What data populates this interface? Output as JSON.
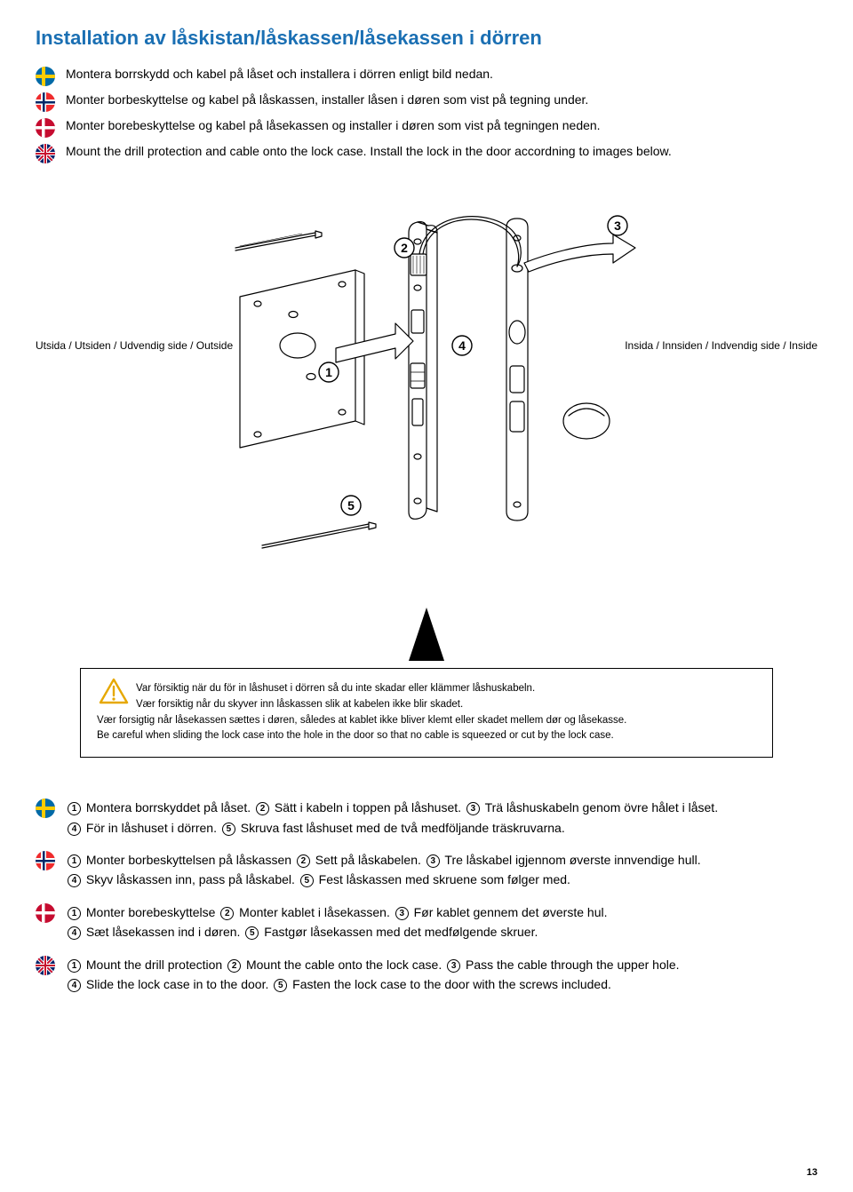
{
  "title_color": "#1a6fb3",
  "title": "Installation av låskistan/låskassen/låsekassen i dörren",
  "intro": [
    {
      "flag": "se",
      "text": "Montera borrskydd och kabel på låset och installera i dörren enligt bild nedan."
    },
    {
      "flag": "no",
      "text": "Monter borbeskyttelse og kabel på låskassen, installer låsen i døren som vist på tegning under."
    },
    {
      "flag": "dk",
      "text": "Monter borebeskyttelse og kabel på låsekassen og installer i døren som vist på tegningen neden."
    },
    {
      "flag": "uk",
      "text": "Mount the drill protection and cable onto the lock case. Install the lock in the door accordning to images below."
    }
  ],
  "side_labels": {
    "outside": "Utsida / Utsiden / Udvendig side / Outside",
    "inside": "Insida / Innsiden / Indvendig side / Inside"
  },
  "diagram": {
    "stroke": "#000000",
    "fill": "#ffffff",
    "num_stroke": "#000000",
    "numbers": [
      "1",
      "2",
      "3",
      "4",
      "5"
    ]
  },
  "warning": {
    "tri_stroke": "#e6a800",
    "lines": [
      "Var försiktig när du för in låshuset i dörren så du inte skadar eller klämmer låshuskabeln.",
      "Vær forsiktig når du skyver inn låskassen slik at kabelen ikke blir skadet.",
      "Vær forsigtig når låsekassen sættes i døren, således at kablet ikke bliver klemt eller skadet mellem dør og låsekasse.",
      "Be careful when sliding the lock case into the hole in the door so that no cable is squeezed or cut by the lock case."
    ]
  },
  "steps": [
    {
      "flag": "se",
      "parts": [
        {
          "n": "1",
          "t": " Montera borrskyddet på låset. "
        },
        {
          "n": "2",
          "t": " Sätt i kabeln i toppen på låshuset. "
        },
        {
          "n": "3",
          "t": " Trä låshuskabeln genom övre hålet i låset."
        },
        {
          "br": true
        },
        {
          "n": "4",
          "t": " För in låshuset i dörren. "
        },
        {
          "n": "5",
          "t": " Skruva fast låshuset med de två medföljande träskruvarna."
        }
      ]
    },
    {
      "flag": "no",
      "parts": [
        {
          "n": "1",
          "t": " Monter borbeskyttelsen på låskassen "
        },
        {
          "n": "2",
          "t": " Sett på låskabelen. "
        },
        {
          "n": "3",
          "t": " Tre låskabel igjennom øverste innvendige hull."
        },
        {
          "br": true
        },
        {
          "n": "4",
          "t": " Skyv låskassen inn, pass på låskabel. "
        },
        {
          "n": "5",
          "t": " Fest låskassen med skruene som følger med."
        }
      ]
    },
    {
      "flag": "dk",
      "parts": [
        {
          "n": "1",
          "t": " Monter borebeskyttelse "
        },
        {
          "n": "2",
          "t": " Monter kablet i låsekassen. "
        },
        {
          "n": "3",
          "t": " Før kablet gennem det øverste hul."
        },
        {
          "br": true
        },
        {
          "n": "4",
          "t": " Sæt låsekassen ind i døren. "
        },
        {
          "n": "5",
          "t": " Fastgør låsekassen med det medfølgende skruer."
        }
      ]
    },
    {
      "flag": "uk",
      "parts": [
        {
          "n": "1",
          "t": " Mount the drill protection "
        },
        {
          "n": "2",
          "t": " Mount the cable onto the lock case. "
        },
        {
          "n": "3",
          "t": " Pass the cable through the upper hole."
        },
        {
          "br": true
        },
        {
          "n": "4",
          "t": " Slide the lock case in to the door. "
        },
        {
          "n": "5",
          "t": " Fasten the lock case to the door with the screws included."
        }
      ]
    }
  ],
  "page_number": "13",
  "flags": {
    "se": {
      "bg": "#006aa7",
      "cross": "#fecc00"
    },
    "no": {
      "bg": "#ef2b2d",
      "outer": "#ffffff",
      "inner": "#002868"
    },
    "dk": {
      "bg": "#c60c30",
      "cross": "#ffffff"
    },
    "uk": {
      "bg": "#012169",
      "white": "#ffffff",
      "red": "#c8102e"
    }
  }
}
